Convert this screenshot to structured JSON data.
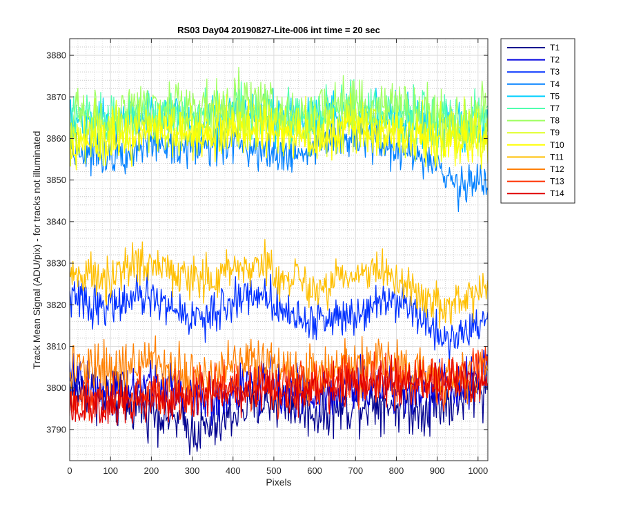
{
  "chart_data": {
    "type": "line",
    "title": "RS03 Day04 20190827-Lite-006 int time = 20 sec",
    "xlabel": "Pixels",
    "ylabel": "Track Mean Signal (ADU/pix) - for tracks not illuminated",
    "xlim": [
      0,
      1024
    ],
    "ylim": [
      3782.5,
      3884
    ],
    "xticks": [
      0,
      100,
      200,
      300,
      400,
      500,
      600,
      700,
      800,
      900,
      1000
    ],
    "yticks": [
      3790,
      3800,
      3810,
      3820,
      3830,
      3840,
      3850,
      3860,
      3870,
      3880
    ],
    "grid": "major and minor",
    "legend_position": "outside-top-right",
    "x": [
      0,
      50,
      100,
      150,
      200,
      250,
      300,
      350,
      400,
      450,
      500,
      550,
      600,
      650,
      700,
      750,
      800,
      850,
      900,
      950,
      1000,
      1023
    ],
    "series": [
      {
        "name": "T1",
        "color": "#00008F",
        "noise": 3.2,
        "values": [
          3800,
          3799,
          3797,
          3796,
          3795,
          3793,
          3790,
          3790,
          3794,
          3796,
          3797,
          3796,
          3794,
          3795,
          3796,
          3797,
          3796,
          3795,
          3796,
          3797,
          3800,
          3800
        ]
      },
      {
        "name": "T2",
        "color": "#0000DF",
        "noise": 3.0,
        "values": [
          3802,
          3801,
          3799,
          3800,
          3801,
          3800,
          3798,
          3797,
          3799,
          3800,
          3801,
          3800,
          3798,
          3799,
          3800,
          3801,
          3800,
          3799,
          3800,
          3801,
          3803,
          3803
        ]
      },
      {
        "name": "T3",
        "color": "#0030FF",
        "noise": 2.4,
        "values": [
          3822,
          3820,
          3820,
          3821,
          3822,
          3819,
          3817,
          3817,
          3821,
          3823,
          3821,
          3817,
          3816,
          3817,
          3818,
          3821,
          3822,
          3818,
          3813,
          3812,
          3815,
          3818
        ]
      },
      {
        "name": "T4",
        "color": "#0080FF",
        "noise": 2.6,
        "values": [
          3858,
          3857,
          3857,
          3858,
          3859,
          3858,
          3858,
          3859,
          3859,
          3858,
          3857,
          3856,
          3858,
          3860,
          3860,
          3859,
          3858,
          3856,
          3852,
          3849,
          3850,
          3850
        ]
      },
      {
        "name": "T5",
        "color": "#00CFFF",
        "noise": 2.8,
        "values": [
          3864,
          3864,
          3864,
          3865,
          3865,
          3865,
          3864,
          3865,
          3866,
          3866,
          3865,
          3864,
          3864,
          3866,
          3866,
          3865,
          3865,
          3864,
          3862,
          3862,
          3863,
          3864
        ]
      },
      {
        "name": "T7",
        "color": "#50FFAF",
        "noise": 3.0,
        "values": [
          3864,
          3865,
          3865,
          3866,
          3866,
          3866,
          3865,
          3866,
          3867,
          3867,
          3866,
          3865,
          3865,
          3867,
          3868,
          3866,
          3866,
          3866,
          3864,
          3864,
          3865,
          3865
        ]
      },
      {
        "name": "T8",
        "color": "#9FFF60",
        "noise": 3.2,
        "values": [
          3864,
          3865,
          3865,
          3867,
          3867,
          3868,
          3867,
          3866,
          3868,
          3869,
          3868,
          3866,
          3866,
          3868,
          3869,
          3867,
          3867,
          3866,
          3865,
          3864,
          3866,
          3866
        ]
      },
      {
        "name": "T9",
        "color": "#DFFF20",
        "noise": 3.2,
        "values": [
          3860,
          3861,
          3862,
          3863,
          3863,
          3863,
          3862,
          3862,
          3864,
          3864,
          3863,
          3862,
          3862,
          3863,
          3864,
          3863,
          3863,
          3862,
          3861,
          3861,
          3862,
          3862
        ]
      },
      {
        "name": "T10",
        "color": "#FFFF00",
        "noise": 2.8,
        "values": [
          3858,
          3859,
          3860,
          3861,
          3862,
          3862,
          3861,
          3860,
          3862,
          3862,
          3861,
          3860,
          3860,
          3861,
          3862,
          3861,
          3861,
          3860,
          3859,
          3859,
          3860,
          3860
        ]
      },
      {
        "name": "T11",
        "color": "#FFBF00",
        "noise": 2.6,
        "values": [
          3827,
          3826,
          3826,
          3829,
          3830,
          3829,
          3826,
          3825,
          3829,
          3830,
          3828,
          3826,
          3824,
          3826,
          3827,
          3828,
          3827,
          3823,
          3820,
          3820,
          3822,
          3824
        ]
      },
      {
        "name": "T12",
        "color": "#FF8000",
        "noise": 3.0,
        "values": [
          3804,
          3804,
          3804,
          3806,
          3806,
          3805,
          3803,
          3803,
          3806,
          3807,
          3806,
          3805,
          3804,
          3805,
          3806,
          3806,
          3806,
          3804,
          3803,
          3803,
          3804,
          3805
        ]
      },
      {
        "name": "T13",
        "color": "#FF3000",
        "noise": 2.8,
        "values": [
          3798,
          3797,
          3797,
          3798,
          3799,
          3799,
          3799,
          3800,
          3801,
          3801,
          3800,
          3800,
          3801,
          3802,
          3802,
          3802,
          3802,
          3801,
          3801,
          3802,
          3803,
          3803
        ]
      },
      {
        "name": "T14",
        "color": "#E00000",
        "noise": 2.6,
        "values": [
          3794,
          3795,
          3795,
          3796,
          3797,
          3797,
          3798,
          3799,
          3799,
          3799,
          3799,
          3799,
          3800,
          3800,
          3801,
          3801,
          3801,
          3801,
          3801,
          3801,
          3802,
          3802
        ]
      }
    ]
  }
}
